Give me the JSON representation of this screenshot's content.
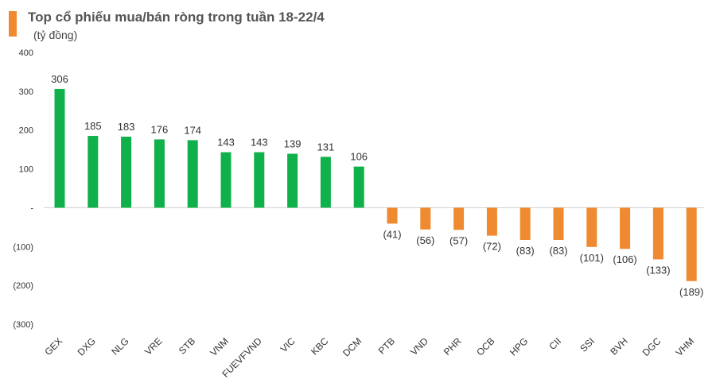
{
  "title": "Top cổ phiếu mua/bán ròng trong tuần 18-22/4",
  "subtitle": "(tỷ đồng)",
  "colors": {
    "positive": "#10b04a",
    "negative": "#f08a30",
    "legend": "#f08a30"
  },
  "chart_data": {
    "type": "bar",
    "title": "Top cổ phiếu mua/bán ròng trong tuần 18-22/4",
    "ylabel": "(tỷ đồng)",
    "xlabel": "",
    "ylim": [
      -300,
      400
    ],
    "grid": false,
    "yticks": [
      400,
      300,
      200,
      100,
      0,
      -100,
      -200,
      -300
    ],
    "ytick_labels": [
      "400",
      "300",
      "200",
      "100",
      "-",
      "(100)",
      "(200)",
      "(300)"
    ],
    "categories": [
      "GEX",
      "DXG",
      "NLG",
      "VRE",
      "STB",
      "VNM",
      "FUEVFVND",
      "VIC",
      "KBC",
      "DCM",
      "PTB",
      "VND",
      "PHR",
      "OCB",
      "HPG",
      "CII",
      "SSI",
      "BVH",
      "DGC",
      "VHM"
    ],
    "values": [
      306,
      185,
      183,
      176,
      174,
      143,
      143,
      139,
      131,
      106,
      -41,
      -56,
      -57,
      -72,
      -83,
      -83,
      -101,
      -106,
      -133,
      -189
    ],
    "value_labels": [
      "306",
      "185",
      "183",
      "176",
      "174",
      "143",
      "143",
      "139",
      "131",
      "106",
      "(41)",
      "(56)",
      "(57)",
      "(72)",
      "(83)",
      "(83)",
      "(101)",
      "(106)",
      "(133)",
      "(189)"
    ]
  }
}
